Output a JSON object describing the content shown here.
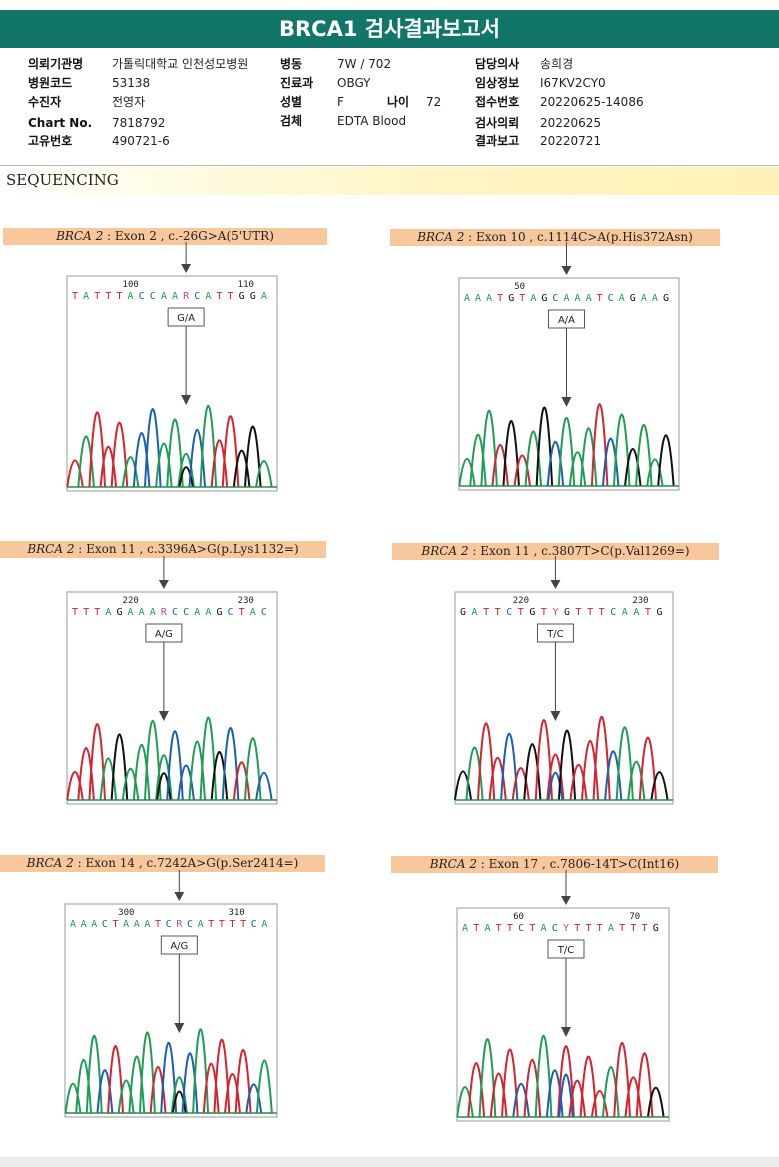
{
  "report": {
    "title": "BRCA1 검사결과보고서",
    "section": "SEQUENCING"
  },
  "patient": {
    "institution": {
      "label": "의뢰기관명",
      "value": "가톨릭대학교 인천성모병원"
    },
    "hospital_code": {
      "label": "병원코드",
      "value": "53138"
    },
    "examinee": {
      "label": "수진자",
      "value": "전영자"
    },
    "chart_no": {
      "label": "Chart No.",
      "value": "7818792"
    },
    "unique_no": {
      "label": "고유번호",
      "value": "490721-6"
    },
    "ward": {
      "label": "병동",
      "value": "7W / 702"
    },
    "department": {
      "label": "진료과",
      "value": "OBGY"
    },
    "sex": {
      "label": "성별",
      "value": "F"
    },
    "age": {
      "label": "나이",
      "value": "72"
    },
    "specimen": {
      "label": "검체",
      "value": "EDTA Blood"
    },
    "physician": {
      "label": "담당의사",
      "value": "송희경"
    },
    "clinical_info": {
      "label": "임상정보",
      "value": "I67KV2CY0"
    },
    "receipt_no": {
      "label": "접수번호",
      "value": "20220625-14086"
    },
    "request_date": {
      "label": "검사의뢰",
      "value": "20220625"
    },
    "result_date": {
      "label": "결과보고",
      "value": "20220721"
    }
  },
  "mutations": [
    {
      "gene": "BRCA 2",
      "detail": " : Exon 2 , c.-26G>A(5'UTR)",
      "seq": "TATTTACCAARCATTGGA",
      "tick1": "100",
      "tick2": "110",
      "call": "G/A"
    },
    {
      "gene": "BRCA 2",
      "detail": " : Exon 10 , c.1114C>A(p.His372Asn)",
      "seq": "AAATGTAGCAAATCAGAAG",
      "tick1": "50",
      "tick2": "",
      "call": "A/A"
    },
    {
      "gene": "BRCA 2",
      "detail": " : Exon 11 , c.3396A>G(p.Lys1132=)",
      "seq": "TTTAGAAARCCAAGCTAC",
      "tick1": "220",
      "tick2": "230",
      "call": "A/G"
    },
    {
      "gene": "BRCA 2",
      "detail": " : Exon 11 , c.3807T>C(p.Val1269=)",
      "seq": "GATTCTGTYGTTTCAATG",
      "tick1": "220",
      "tick2": "230",
      "call": "T/C"
    },
    {
      "gene": "BRCA 2",
      "detail": " : Exon 14 , c.7242A>G(p.Ser2414=)",
      "seq": "AAACTAAATCRCATTTTCA",
      "tick1": "300",
      "tick2": "310",
      "call": "A/G"
    },
    {
      "gene": "BRCA 2",
      "detail": " : Exon 17 , c.7806-14T>C(Int16)",
      "seq": "ATATTCTACYTTTATTTG",
      "tick1": "60",
      "tick2": "70",
      "call": "T/C"
    }
  ],
  "colors": {
    "header": "#117567",
    "A": "#1f9d55",
    "T": "#d6232f",
    "C": "#1b5fb0",
    "G": "#111111",
    "hetero": "#b54aa8"
  }
}
